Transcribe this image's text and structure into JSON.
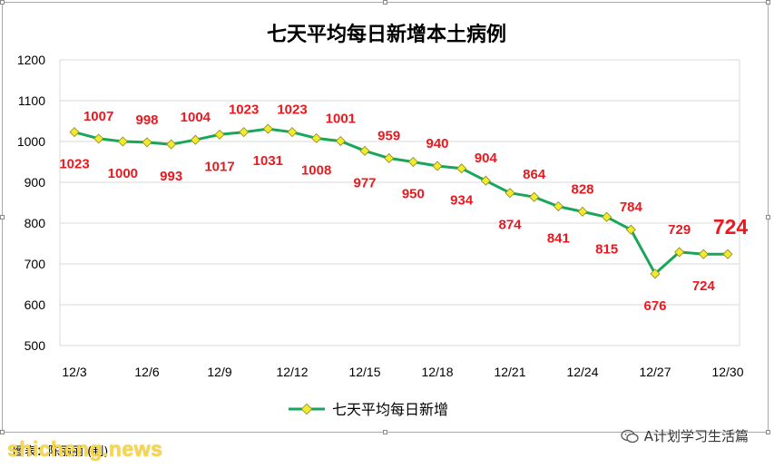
{
  "chart_data": {
    "type": "line",
    "title": "七天平均每日新增本土病例",
    "xlabel": "",
    "ylabel": "",
    "ylim": [
      500,
      1200
    ],
    "yticks": [
      500,
      600,
      700,
      800,
      900,
      1000,
      1100,
      1200
    ],
    "x": [
      "12/3",
      "12/4",
      "12/5",
      "12/6",
      "12/7",
      "12/8",
      "12/9",
      "12/10",
      "12/11",
      "12/12",
      "12/13",
      "12/14",
      "12/15",
      "12/16",
      "12/17",
      "12/18",
      "12/19",
      "12/20",
      "12/21",
      "12/22",
      "12/23",
      "12/24",
      "12/25",
      "12/26",
      "12/27",
      "12/28",
      "12/29",
      "12/30"
    ],
    "x_tick_labels": [
      "12/3",
      "12/6",
      "12/9",
      "12/12",
      "12/15",
      "12/18",
      "12/21",
      "12/24",
      "12/27",
      "12/30"
    ],
    "series": [
      {
        "name": "七天平均每日新增",
        "values": [
          1023,
          1007,
          1000,
          998,
          993,
          1004,
          1017,
          1023,
          1031,
          1023,
          1008,
          1001,
          977,
          959,
          950,
          940,
          934,
          904,
          874,
          864,
          841,
          828,
          815,
          784,
          676,
          729,
          724,
          724
        ],
        "color": "#1aa65a",
        "marker_color": "#f2ea2c"
      }
    ],
    "grid": true,
    "legend": "bottom"
  },
  "caption": "图表：陈丽丽 (制)",
  "watermark": "shicheng.news",
  "wechat": {
    "icon": "wechat-icon",
    "text": "A计划学习生活篇"
  },
  "colors": {
    "line": "#1aa65a",
    "marker": "#f2ea2c",
    "label": "#e8191f",
    "grid": "#d9d9d9"
  }
}
